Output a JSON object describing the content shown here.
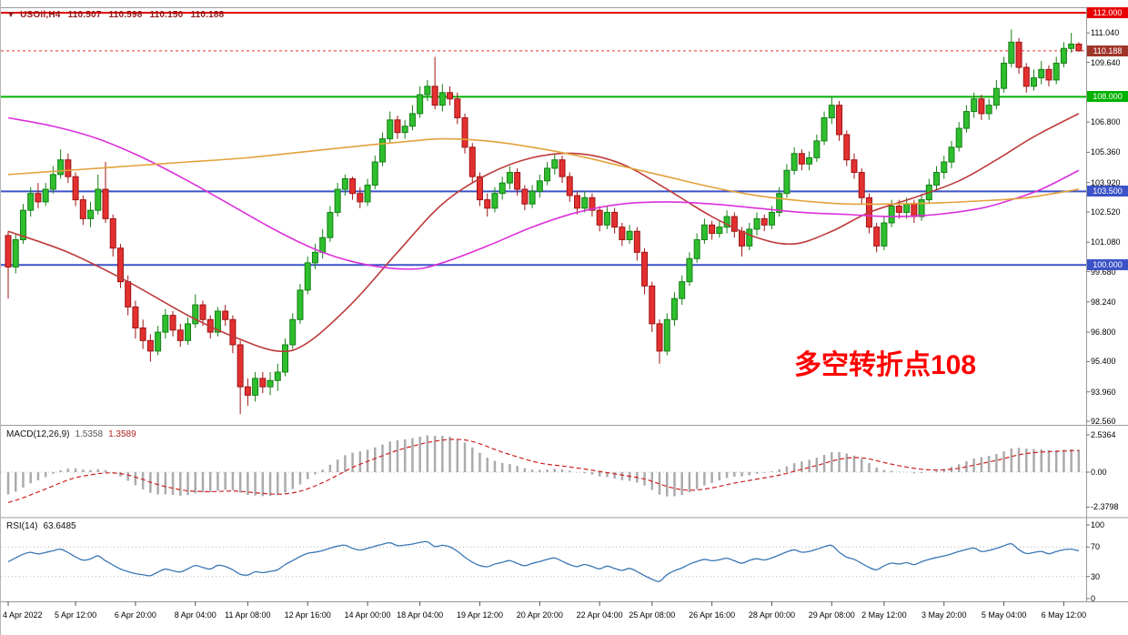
{
  "header": {
    "marker": "▼",
    "symbol": "USOil,H4",
    "open": "110.507",
    "high": "110.598",
    "low": "110.150",
    "close": "110.188"
  },
  "annotation": {
    "text": "多空转折点108",
    "color": "#FF0000"
  },
  "macd_panel": {
    "title": "MACD(12,26,9)",
    "value_macd": "1.5358",
    "value_signal": "1.3589",
    "scale": [
      {
        "label": "2.5364",
        "value": 2.5364
      },
      {
        "label": "0.00",
        "value": 0
      },
      {
        "label": "-2.3798",
        "value": -2.3798
      }
    ]
  },
  "rsi_panel": {
    "title": "RSI(14)",
    "value": "63.6485",
    "scale": [
      {
        "label": "100",
        "value": 100
      },
      {
        "label": "70",
        "value": 70
      },
      {
        "label": "30",
        "value": 30
      },
      {
        "label": "0",
        "value": 0
      }
    ],
    "levels": [
      70,
      30
    ]
  },
  "chart_data": {
    "type": "candlestick",
    "title": "USOil H4",
    "ylim": [
      92.56,
      112.0
    ],
    "up_color": "#2EBE2E",
    "up_border": "#168016",
    "down_color": "#E33030",
    "down_border": "#9E1414",
    "price_ticks": [
      {
        "label": "111.040",
        "value": 111.04
      },
      {
        "label": "109.640",
        "value": 109.64
      },
      {
        "label": "106.800",
        "value": 106.8
      },
      {
        "label": "105.360",
        "value": 105.36
      },
      {
        "label": "103.920",
        "value": 103.92
      },
      {
        "label": "102.520",
        "value": 102.52
      },
      {
        "label": "101.080",
        "value": 101.08
      },
      {
        "label": "99.680",
        "value": 99.68
      },
      {
        "label": "98.240",
        "value": 98.24
      },
      {
        "label": "96.800",
        "value": 96.8
      },
      {
        "label": "95.400",
        "value": 95.4
      },
      {
        "label": "93.960",
        "value": 93.96
      },
      {
        "label": "92.560",
        "value": 92.56
      }
    ],
    "time_labels": [
      {
        "index": 0,
        "label": "4 Apr 2022"
      },
      {
        "index": 9,
        "label": "5 Apr 12:00"
      },
      {
        "index": 17,
        "label": "6 Apr 20:00"
      },
      {
        "index": 25,
        "label": "8 Apr 04:00"
      },
      {
        "index": 32,
        "label": "11 Apr 08:00"
      },
      {
        "index": 40,
        "label": "12 Apr 16:00"
      },
      {
        "index": 48,
        "label": "14 Apr 00:00"
      },
      {
        "index": 55,
        "label": "18 Apr 04:00"
      },
      {
        "index": 63,
        "label": "19 Apr 12:00"
      },
      {
        "index": 71,
        "label": "20 Apr 20:00"
      },
      {
        "index": 79,
        "label": "22 Apr 04:00"
      },
      {
        "index": 86,
        "label": "25 Apr 08:00"
      },
      {
        "index": 94,
        "label": "26 Apr 16:00"
      },
      {
        "index": 102,
        "label": "28 Apr 00:00"
      },
      {
        "index": 110,
        "label": "29 Apr 08:00"
      },
      {
        "index": 117,
        "label": "2 May 12:00"
      },
      {
        "index": 125,
        "label": "3 May 20:00"
      },
      {
        "index": 133,
        "label": "5 May 04:00"
      },
      {
        "index": 141,
        "label": "6 May 12:00"
      }
    ],
    "horizontal_lines": [
      {
        "value": 112.0,
        "label": "112.000",
        "color": "#E60000"
      },
      {
        "value": 108.0,
        "label": "108.000",
        "color": "#00B200"
      },
      {
        "value": 103.5,
        "label": "103.500",
        "color": "#3C53C8"
      },
      {
        "value": 100.0,
        "label": "100.000",
        "color": "#3C53C8"
      }
    ],
    "current_price": {
      "value": 110.188,
      "label": "110.188",
      "badge_color": "#A0352A",
      "line_color": "#E60000"
    },
    "candles": [
      [
        101.4,
        101.6,
        98.4,
        99.9
      ],
      [
        99.9,
        101.5,
        99.6,
        101.2
      ],
      [
        101.2,
        102.9,
        101.0,
        102.6
      ],
      [
        102.6,
        103.7,
        102.3,
        103.4
      ],
      [
        103.4,
        103.9,
        102.7,
        103.0
      ],
      [
        103.0,
        103.9,
        102.8,
        103.6
      ],
      [
        103.6,
        104.7,
        103.4,
        104.3
      ],
      [
        104.3,
        105.5,
        104.1,
        105.0
      ],
      [
        105.0,
        105.3,
        103.9,
        104.2
      ],
      [
        104.2,
        104.4,
        102.8,
        103.1
      ],
      [
        103.1,
        103.3,
        101.9,
        102.2
      ],
      [
        102.2,
        103.0,
        101.8,
        102.6
      ],
      [
        102.6,
        104.3,
        102.4,
        103.6
      ],
      [
        103.6,
        104.9,
        102.0,
        102.2
      ],
      [
        102.2,
        102.4,
        100.4,
        100.8
      ],
      [
        100.8,
        101.0,
        98.9,
        99.2
      ],
      [
        99.2,
        99.5,
        97.6,
        98.0
      ],
      [
        98.0,
        98.3,
        96.5,
        97.0
      ],
      [
        97.0,
        97.4,
        96.0,
        96.4
      ],
      [
        96.4,
        96.7,
        95.4,
        95.9
      ],
      [
        95.9,
        97.1,
        95.7,
        96.8
      ],
      [
        96.8,
        97.9,
        96.5,
        97.6
      ],
      [
        97.6,
        97.8,
        96.6,
        96.9
      ],
      [
        96.9,
        97.2,
        96.1,
        96.4
      ],
      [
        96.4,
        97.5,
        96.2,
        97.2
      ],
      [
        97.2,
        98.6,
        97.0,
        98.1
      ],
      [
        98.1,
        98.3,
        97.1,
        97.4
      ],
      [
        97.4,
        97.6,
        96.5,
        96.8
      ],
      [
        96.8,
        98.0,
        96.6,
        97.8
      ],
      [
        97.8,
        98.1,
        97.1,
        97.4
      ],
      [
        97.4,
        97.6,
        95.8,
        96.2
      ],
      [
        96.2,
        96.4,
        92.9,
        94.2
      ],
      [
        94.2,
        94.6,
        93.3,
        93.8
      ],
      [
        93.8,
        94.9,
        93.5,
        94.6
      ],
      [
        94.6,
        94.9,
        93.9,
        94.2
      ],
      [
        94.2,
        94.9,
        93.8,
        94.5
      ],
      [
        94.5,
        95.3,
        94.0,
        94.9
      ],
      [
        94.9,
        96.5,
        94.7,
        96.2
      ],
      [
        96.2,
        97.7,
        96.0,
        97.4
      ],
      [
        97.4,
        99.1,
        97.2,
        98.8
      ],
      [
        98.8,
        100.4,
        98.6,
        100.1
      ],
      [
        100.1,
        101.0,
        99.8,
        100.6
      ],
      [
        100.6,
        101.7,
        100.3,
        101.3
      ],
      [
        101.3,
        102.8,
        101.1,
        102.5
      ],
      [
        102.5,
        103.9,
        102.3,
        103.6
      ],
      [
        103.6,
        104.3,
        103.3,
        104.1
      ],
      [
        104.1,
        104.2,
        103.1,
        103.4
      ],
      [
        103.4,
        103.7,
        102.7,
        103.0
      ],
      [
        103.0,
        104.1,
        102.8,
        103.8
      ],
      [
        103.8,
        105.2,
        103.6,
        104.9
      ],
      [
        104.9,
        106.3,
        104.7,
        106.0
      ],
      [
        106.0,
        107.3,
        105.8,
        106.9
      ],
      [
        106.9,
        107.1,
        106.0,
        106.3
      ],
      [
        106.3,
        106.9,
        106.0,
        106.6
      ],
      [
        106.6,
        107.6,
        106.4,
        107.2
      ],
      [
        107.2,
        108.5,
        107.0,
        108.1
      ],
      [
        108.1,
        108.8,
        107.8,
        108.5
      ],
      [
        108.5,
        109.9,
        107.4,
        107.6
      ],
      [
        107.6,
        108.6,
        107.3,
        108.2
      ],
      [
        108.2,
        108.5,
        107.6,
        107.9
      ],
      [
        107.9,
        108.2,
        106.7,
        107.0
      ],
      [
        107.0,
        107.2,
        105.3,
        105.6
      ],
      [
        105.6,
        105.8,
        103.9,
        104.2
      ],
      [
        104.2,
        104.4,
        102.8,
        103.1
      ],
      [
        103.1,
        103.4,
        102.3,
        102.7
      ],
      [
        102.7,
        103.7,
        102.5,
        103.4
      ],
      [
        103.4,
        104.2,
        103.1,
        103.9
      ],
      [
        103.9,
        104.7,
        103.6,
        104.4
      ],
      [
        104.4,
        104.6,
        103.3,
        103.6
      ],
      [
        103.6,
        103.8,
        102.6,
        102.9
      ],
      [
        102.9,
        103.8,
        102.7,
        103.5
      ],
      [
        103.5,
        104.3,
        103.2,
        104.0
      ],
      [
        104.0,
        104.9,
        103.8,
        104.6
      ],
      [
        104.6,
        105.3,
        104.3,
        105.0
      ],
      [
        105.0,
        105.2,
        103.9,
        104.2
      ],
      [
        104.2,
        104.4,
        103.0,
        103.3
      ],
      [
        103.3,
        103.5,
        102.4,
        102.7
      ],
      [
        102.7,
        103.5,
        102.5,
        103.2
      ],
      [
        103.2,
        103.4,
        102.3,
        102.6
      ],
      [
        102.6,
        102.8,
        101.6,
        101.9
      ],
      [
        101.9,
        102.8,
        101.7,
        102.5
      ],
      [
        102.5,
        102.7,
        101.5,
        101.8
      ],
      [
        101.8,
        102.0,
        100.9,
        101.2
      ],
      [
        101.2,
        101.9,
        101.0,
        101.6
      ],
      [
        101.6,
        101.8,
        100.2,
        100.6
      ],
      [
        100.6,
        100.8,
        98.6,
        99.0
      ],
      [
        99.0,
        99.2,
        96.8,
        97.2
      ],
      [
        97.2,
        97.4,
        95.3,
        95.9
      ],
      [
        95.9,
        97.7,
        95.7,
        97.4
      ],
      [
        97.4,
        98.7,
        97.1,
        98.4
      ],
      [
        98.4,
        99.5,
        98.1,
        99.2
      ],
      [
        99.2,
        100.6,
        99.0,
        100.3
      ],
      [
        100.3,
        101.5,
        100.1,
        101.2
      ],
      [
        101.2,
        102.2,
        101.0,
        101.9
      ],
      [
        101.9,
        102.1,
        101.2,
        101.5
      ],
      [
        101.5,
        102.1,
        101.3,
        101.8
      ],
      [
        101.8,
        102.6,
        101.5,
        102.3
      ],
      [
        102.3,
        102.5,
        101.3,
        101.6
      ],
      [
        101.6,
        101.8,
        100.4,
        100.9
      ],
      [
        100.9,
        102.0,
        100.7,
        101.7
      ],
      [
        101.7,
        102.5,
        101.4,
        102.2
      ],
      [
        102.2,
        102.4,
        101.6,
        101.9
      ],
      [
        101.9,
        102.8,
        101.7,
        102.5
      ],
      [
        102.5,
        103.7,
        102.3,
        103.4
      ],
      [
        103.4,
        104.8,
        103.2,
        104.5
      ],
      [
        104.5,
        105.6,
        104.3,
        105.3
      ],
      [
        105.3,
        105.5,
        104.5,
        104.8
      ],
      [
        104.8,
        105.4,
        104.5,
        105.1
      ],
      [
        105.1,
        106.2,
        104.9,
        105.9
      ],
      [
        105.9,
        107.3,
        105.7,
        107.0
      ],
      [
        107.0,
        108.0,
        106.7,
        107.6
      ],
      [
        107.6,
        107.8,
        105.9,
        106.2
      ],
      [
        106.2,
        106.4,
        104.7,
        105.0
      ],
      [
        105.0,
        105.3,
        104.1,
        104.4
      ],
      [
        104.4,
        104.6,
        102.9,
        103.2
      ],
      [
        103.2,
        103.4,
        101.5,
        101.8
      ],
      [
        101.8,
        102.0,
        100.6,
        100.9
      ],
      [
        100.9,
        102.3,
        100.7,
        102.0
      ],
      [
        102.0,
        103.1,
        101.8,
        102.8
      ],
      [
        102.8,
        103.1,
        102.2,
        102.5
      ],
      [
        102.5,
        103.2,
        102.2,
        102.9
      ],
      [
        102.9,
        103.1,
        102.0,
        102.3
      ],
      [
        102.3,
        103.4,
        102.1,
        103.1
      ],
      [
        103.1,
        104.1,
        102.9,
        103.8
      ],
      [
        103.8,
        104.7,
        103.6,
        104.4
      ],
      [
        104.4,
        105.2,
        104.1,
        104.9
      ],
      [
        104.9,
        105.9,
        104.6,
        105.6
      ],
      [
        105.6,
        106.8,
        105.4,
        106.5
      ],
      [
        106.5,
        107.6,
        106.3,
        107.3
      ],
      [
        107.3,
        108.2,
        107.0,
        107.9
      ],
      [
        107.9,
        108.1,
        106.9,
        107.2
      ],
      [
        107.2,
        107.9,
        106.9,
        107.6
      ],
      [
        107.6,
        108.8,
        107.4,
        108.4
      ],
      [
        108.4,
        109.9,
        108.2,
        109.6
      ],
      [
        109.6,
        111.2,
        109.4,
        110.6
      ],
      [
        110.6,
        110.8,
        109.1,
        109.4
      ],
      [
        109.4,
        109.6,
        108.2,
        108.5
      ],
      [
        108.5,
        109.3,
        108.3,
        108.9
      ],
      [
        108.9,
        109.7,
        108.6,
        109.3
      ],
      [
        109.3,
        109.5,
        108.5,
        108.8
      ],
      [
        108.8,
        109.9,
        108.6,
        109.6
      ],
      [
        109.6,
        110.6,
        109.4,
        110.3
      ],
      [
        110.3,
        111.04,
        110.1,
        110.51
      ],
      [
        110.507,
        110.598,
        110.15,
        110.188
      ]
    ],
    "moving_averages": [
      {
        "name": "ma-red",
        "color": "#BE3B3B",
        "points": [
          [
            0,
            101.6
          ],
          [
            8,
            100.6
          ],
          [
            16,
            99.2
          ],
          [
            24,
            97.6
          ],
          [
            30,
            96.6
          ],
          [
            36,
            95.9
          ],
          [
            40,
            96.3
          ],
          [
            46,
            98.2
          ],
          [
            52,
            100.6
          ],
          [
            58,
            102.9
          ],
          [
            64,
            104.3
          ],
          [
            70,
            105.1
          ],
          [
            76,
            105.3
          ],
          [
            82,
            104.8
          ],
          [
            88,
            103.6
          ],
          [
            94,
            102.3
          ],
          [
            100,
            101.3
          ],
          [
            105,
            101.0
          ],
          [
            110,
            101.6
          ],
          [
            115,
            102.5
          ],
          [
            121,
            103.2
          ],
          [
            127,
            104.0
          ],
          [
            132,
            105.0
          ],
          [
            137,
            106.1
          ],
          [
            143,
            107.2
          ]
        ]
      },
      {
        "name": "ma-magenta",
        "color": "#DB30DB",
        "points": [
          [
            0,
            107.0
          ],
          [
            6,
            106.6
          ],
          [
            12,
            106.0
          ],
          [
            18,
            105.1
          ],
          [
            24,
            104.0
          ],
          [
            30,
            102.8
          ],
          [
            36,
            101.6
          ],
          [
            42,
            100.6
          ],
          [
            48,
            100.0
          ],
          [
            54,
            99.8
          ],
          [
            58,
            100.1
          ],
          [
            64,
            100.9
          ],
          [
            70,
            101.8
          ],
          [
            76,
            102.5
          ],
          [
            82,
            102.9
          ],
          [
            88,
            103.0
          ],
          [
            94,
            102.9
          ],
          [
            100,
            102.7
          ],
          [
            106,
            102.5
          ],
          [
            112,
            102.4
          ],
          [
            118,
            102.3
          ],
          [
            124,
            102.4
          ],
          [
            130,
            102.7
          ],
          [
            134,
            103.1
          ],
          [
            138,
            103.6
          ],
          [
            143,
            104.5
          ]
        ]
      },
      {
        "name": "ma-orange",
        "color": "#E2A23B",
        "points": [
          [
            0,
            104.3
          ],
          [
            8,
            104.5
          ],
          [
            16,
            104.7
          ],
          [
            24,
            104.9
          ],
          [
            32,
            105.1
          ],
          [
            40,
            105.4
          ],
          [
            48,
            105.7
          ],
          [
            54,
            105.9
          ],
          [
            58,
            106.0
          ],
          [
            64,
            105.9
          ],
          [
            70,
            105.6
          ],
          [
            76,
            105.2
          ],
          [
            82,
            104.7
          ],
          [
            88,
            104.2
          ],
          [
            94,
            103.7
          ],
          [
            100,
            103.3
          ],
          [
            106,
            103.05
          ],
          [
            112,
            102.9
          ],
          [
            118,
            102.9
          ],
          [
            124,
            102.95
          ],
          [
            130,
            103.05
          ],
          [
            136,
            103.2
          ],
          [
            143,
            103.6
          ]
        ]
      }
    ],
    "macd": {
      "params": [
        12,
        26,
        9
      ],
      "histogram_color": "#ABABAB",
      "signal_color": "#CC2222",
      "current_macd": 1.5358,
      "current_signal": 1.3589,
      "scale_max": 2.5364,
      "scale_min": -2.3798
    },
    "rsi": {
      "period": 14,
      "current": 63.6485,
      "color": "#3977B5",
      "levels": [
        70,
        30
      ]
    }
  }
}
